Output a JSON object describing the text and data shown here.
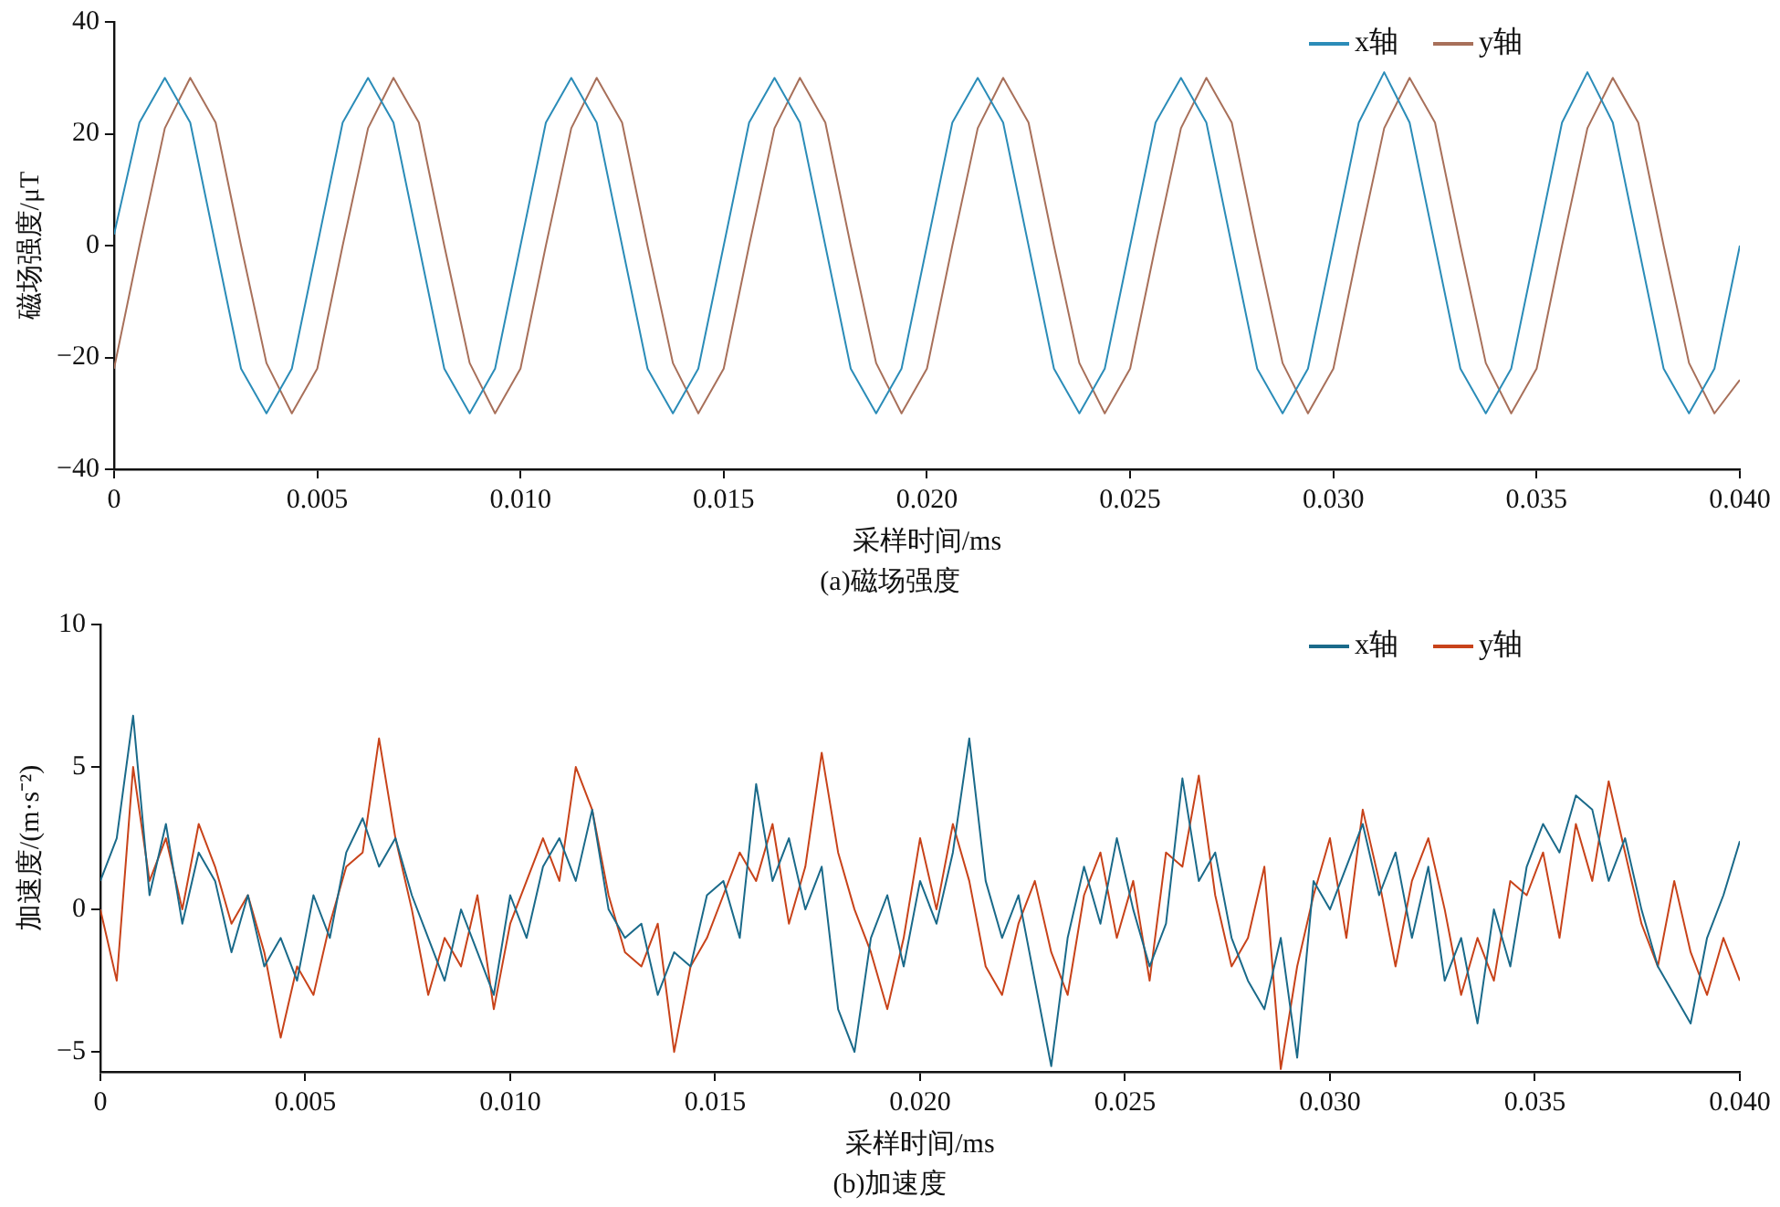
{
  "chart_data": [
    {
      "type": "line",
      "xlabel": "采样时间/ms",
      "ylabel": "磁场强度/μT",
      "annotations": [
        "(a)磁场强度"
      ],
      "legend": "top right",
      "grid": false,
      "marker": "none",
      "xlim": [
        0,
        0.04
      ],
      "ylim": [
        -40,
        40
      ],
      "xticks": [
        0,
        0.005,
        {
          "value": 0.01,
          "label": "0.010"
        },
        0.015,
        {
          "value": 0.02,
          "label": "0.020"
        },
        0.025,
        {
          "value": 0.03,
          "label": "0.030"
        },
        0.035,
        {
          "value": 0.04,
          "label": "0.040"
        }
      ],
      "yticks": [
        {
          "value": -40,
          "label": "−40"
        },
        {
          "value": -20,
          "label": "−20"
        },
        0,
        20,
        40
      ],
      "x": [
        0,
        0.000625,
        0.00125,
        0.001875,
        0.0025,
        0.003125,
        0.00375,
        0.004375,
        0.005,
        0.005625,
        0.00625,
        0.006875,
        0.0075,
        0.008125,
        0.00875,
        0.009375,
        0.01,
        0.010625,
        0.01125,
        0.011875,
        0.0125,
        0.013125,
        0.01375,
        0.014375,
        0.015,
        0.015625,
        0.01625,
        0.016875,
        0.0175,
        0.018125,
        0.01875,
        0.019375,
        0.02,
        0.020625,
        0.02125,
        0.021875,
        0.0225,
        0.023125,
        0.02375,
        0.024375,
        0.025,
        0.025625,
        0.02625,
        0.026875,
        0.0275,
        0.028125,
        0.02875,
        0.029375,
        0.03,
        0.030625,
        0.03125,
        0.031875,
        0.0325,
        0.033125,
        0.03375,
        0.034375,
        0.035,
        0.035625,
        0.03625,
        0.036875,
        0.0375,
        0.038125,
        0.03875,
        0.039375,
        0.04
      ],
      "series": [
        {
          "name": "x轴",
          "color": "#2b8cb8",
          "values": [
            2,
            22,
            30,
            22,
            0,
            -22,
            -30,
            -22,
            0,
            22,
            30,
            22,
            0,
            -22,
            -30,
            -22,
            0,
            22,
            30,
            22,
            0,
            -22,
            -30,
            -22,
            0,
            22,
            30,
            22,
            0,
            -22,
            -30,
            -22,
            0,
            22,
            30,
            22,
            0,
            -22,
            -30,
            -22,
            0,
            22,
            30,
            22,
            0,
            -22,
            -30,
            -22,
            0,
            22,
            31,
            22,
            0,
            -22,
            -30,
            -22,
            0,
            22,
            31,
            22,
            0,
            -22,
            -30,
            -22,
            0
          ]
        },
        {
          "name": "y轴",
          "color": "#a8705a",
          "values": [
            -22,
            0,
            21,
            30,
            22,
            0,
            -21,
            -30,
            -22,
            0,
            21,
            30,
            22,
            0,
            -21,
            -30,
            -22,
            0,
            21,
            30,
            22,
            0,
            -21,
            -30,
            -22,
            0,
            21,
            30,
            22,
            0,
            -21,
            -30,
            -22,
            0,
            21,
            30,
            22,
            0,
            -21,
            -30,
            -22,
            0,
            21,
            30,
            22,
            0,
            -21,
            -30,
            -22,
            0,
            21,
            30,
            22,
            0,
            -21,
            -30,
            -22,
            0,
            21,
            30,
            22,
            0,
            -21,
            -30,
            -24
          ]
        }
      ]
    },
    {
      "type": "line",
      "xlabel": "采样时间/ms",
      "ylabel": "加速度/(m·s⁻²)",
      "annotations": [
        "(b)加速度"
      ],
      "legend": "top right",
      "grid": false,
      "marker": "none",
      "xlim": [
        0,
        0.04
      ],
      "ylim": [
        -5.7,
        10
      ],
      "xticks": [
        0,
        0.005,
        {
          "value": 0.01,
          "label": "0.010"
        },
        0.015,
        {
          "value": 0.02,
          "label": "0.020"
        },
        0.025,
        {
          "value": 0.03,
          "label": "0.030"
        },
        0.035,
        {
          "value": 0.04,
          "label": "0.040"
        }
      ],
      "yticks": [
        {
          "value": -5,
          "label": "−5"
        },
        0,
        5,
        10
      ],
      "x": [
        0,
        0.0004,
        0.0008,
        0.0012,
        0.0016,
        0.002,
        0.0024,
        0.0028,
        0.0032,
        0.0036,
        0.004,
        0.0044,
        0.0048,
        0.0052,
        0.0056,
        0.006,
        0.0064,
        0.0068,
        0.0072,
        0.0076,
        0.008,
        0.0084,
        0.0088,
        0.0092,
        0.0096,
        0.01,
        0.0104,
        0.0108,
        0.0112,
        0.0116,
        0.012,
        0.0124,
        0.0128,
        0.0132,
        0.0136,
        0.014,
        0.0144,
        0.0148,
        0.0152,
        0.0156,
        0.016,
        0.0164,
        0.0168,
        0.0172,
        0.0176,
        0.018,
        0.0184,
        0.0188,
        0.0192,
        0.0196,
        0.02,
        0.0204,
        0.0208,
        0.0212,
        0.0216,
        0.022,
        0.0224,
        0.0228,
        0.0232,
        0.0236,
        0.024,
        0.0244,
        0.0248,
        0.0252,
        0.0256,
        0.026,
        0.0264,
        0.0268,
        0.0272,
        0.0276,
        0.028,
        0.0284,
        0.0288,
        0.0292,
        0.0296,
        0.03,
        0.0304,
        0.0308,
        0.0312,
        0.0316,
        0.032,
        0.0324,
        0.0328,
        0.0332,
        0.0336,
        0.034,
        0.0344,
        0.0348,
        0.0352,
        0.0356,
        0.036,
        0.0364,
        0.0368,
        0.0372,
        0.0376,
        0.038,
        0.0384,
        0.0388,
        0.0392,
        0.0396,
        0.04
      ],
      "series": [
        {
          "name": "x轴",
          "color": "#1a6a8a",
          "values": [
            1,
            2.5,
            6.8,
            0.5,
            3,
            -0.5,
            2,
            1,
            -1.5,
            0.5,
            -2,
            -1,
            -2.5,
            0.5,
            -1,
            2,
            3.2,
            1.5,
            2.5,
            0.5,
            -1,
            -2.5,
            0,
            -1.5,
            -3,
            0.5,
            -1,
            1.5,
            2.5,
            1,
            3.5,
            0,
            -1,
            -0.5,
            -3,
            -1.5,
            -2,
            0.5,
            1,
            -1,
            4.4,
            1,
            2.5,
            0,
            1.5,
            -3.5,
            -5,
            -1,
            0.5,
            -2,
            1,
            -0.5,
            2,
            6,
            1,
            -1,
            0.5,
            -2.5,
            -5.5,
            -1,
            1.5,
            -0.5,
            2.5,
            0,
            -2,
            -0.5,
            4.6,
            1,
            2,
            -1,
            -2.5,
            -3.5,
            -1,
            -5.2,
            1,
            0,
            1.5,
            3,
            0.5,
            2,
            -1,
            1.5,
            -2.5,
            -1,
            -4,
            0,
            -2,
            1.5,
            3,
            2,
            4,
            3.5,
            1,
            2.5,
            0,
            -2,
            -3,
            -4,
            -1,
            0.5,
            2.4
          ]
        },
        {
          "name": "y轴",
          "color": "#c8431a",
          "values": [
            0,
            -2.5,
            5,
            1,
            2.5,
            0,
            3,
            1.5,
            -0.5,
            0.5,
            -1.5,
            -4.5,
            -2,
            -3,
            -0.5,
            1.5,
            2,
            6,
            2.5,
            0,
            -3,
            -1,
            -2,
            0.5,
            -3.5,
            -0.5,
            1,
            2.5,
            1,
            5,
            3.5,
            0.5,
            -1.5,
            -2,
            -0.5,
            -5,
            -2,
            -1,
            0.5,
            2,
            1,
            3,
            -0.5,
            1.5,
            5.5,
            2,
            0,
            -1.5,
            -3.5,
            -1,
            2.5,
            0,
            3,
            1,
            -2,
            -3,
            -0.5,
            1,
            -1.5,
            -3,
            0.5,
            2,
            -1,
            1,
            -2.5,
            2,
            1.5,
            4.7,
            0.5,
            -2,
            -1,
            1.5,
            -5.6,
            -2,
            0.5,
            2.5,
            -1,
            3.5,
            1,
            -2,
            1,
            2.5,
            0,
            -3,
            -1,
            -2.5,
            1,
            0.5,
            2,
            -1,
            3,
            1,
            4.5,
            2,
            -0.5,
            -2,
            1,
            -1.5,
            -3,
            -1,
            -2.5
          ]
        }
      ]
    }
  ]
}
